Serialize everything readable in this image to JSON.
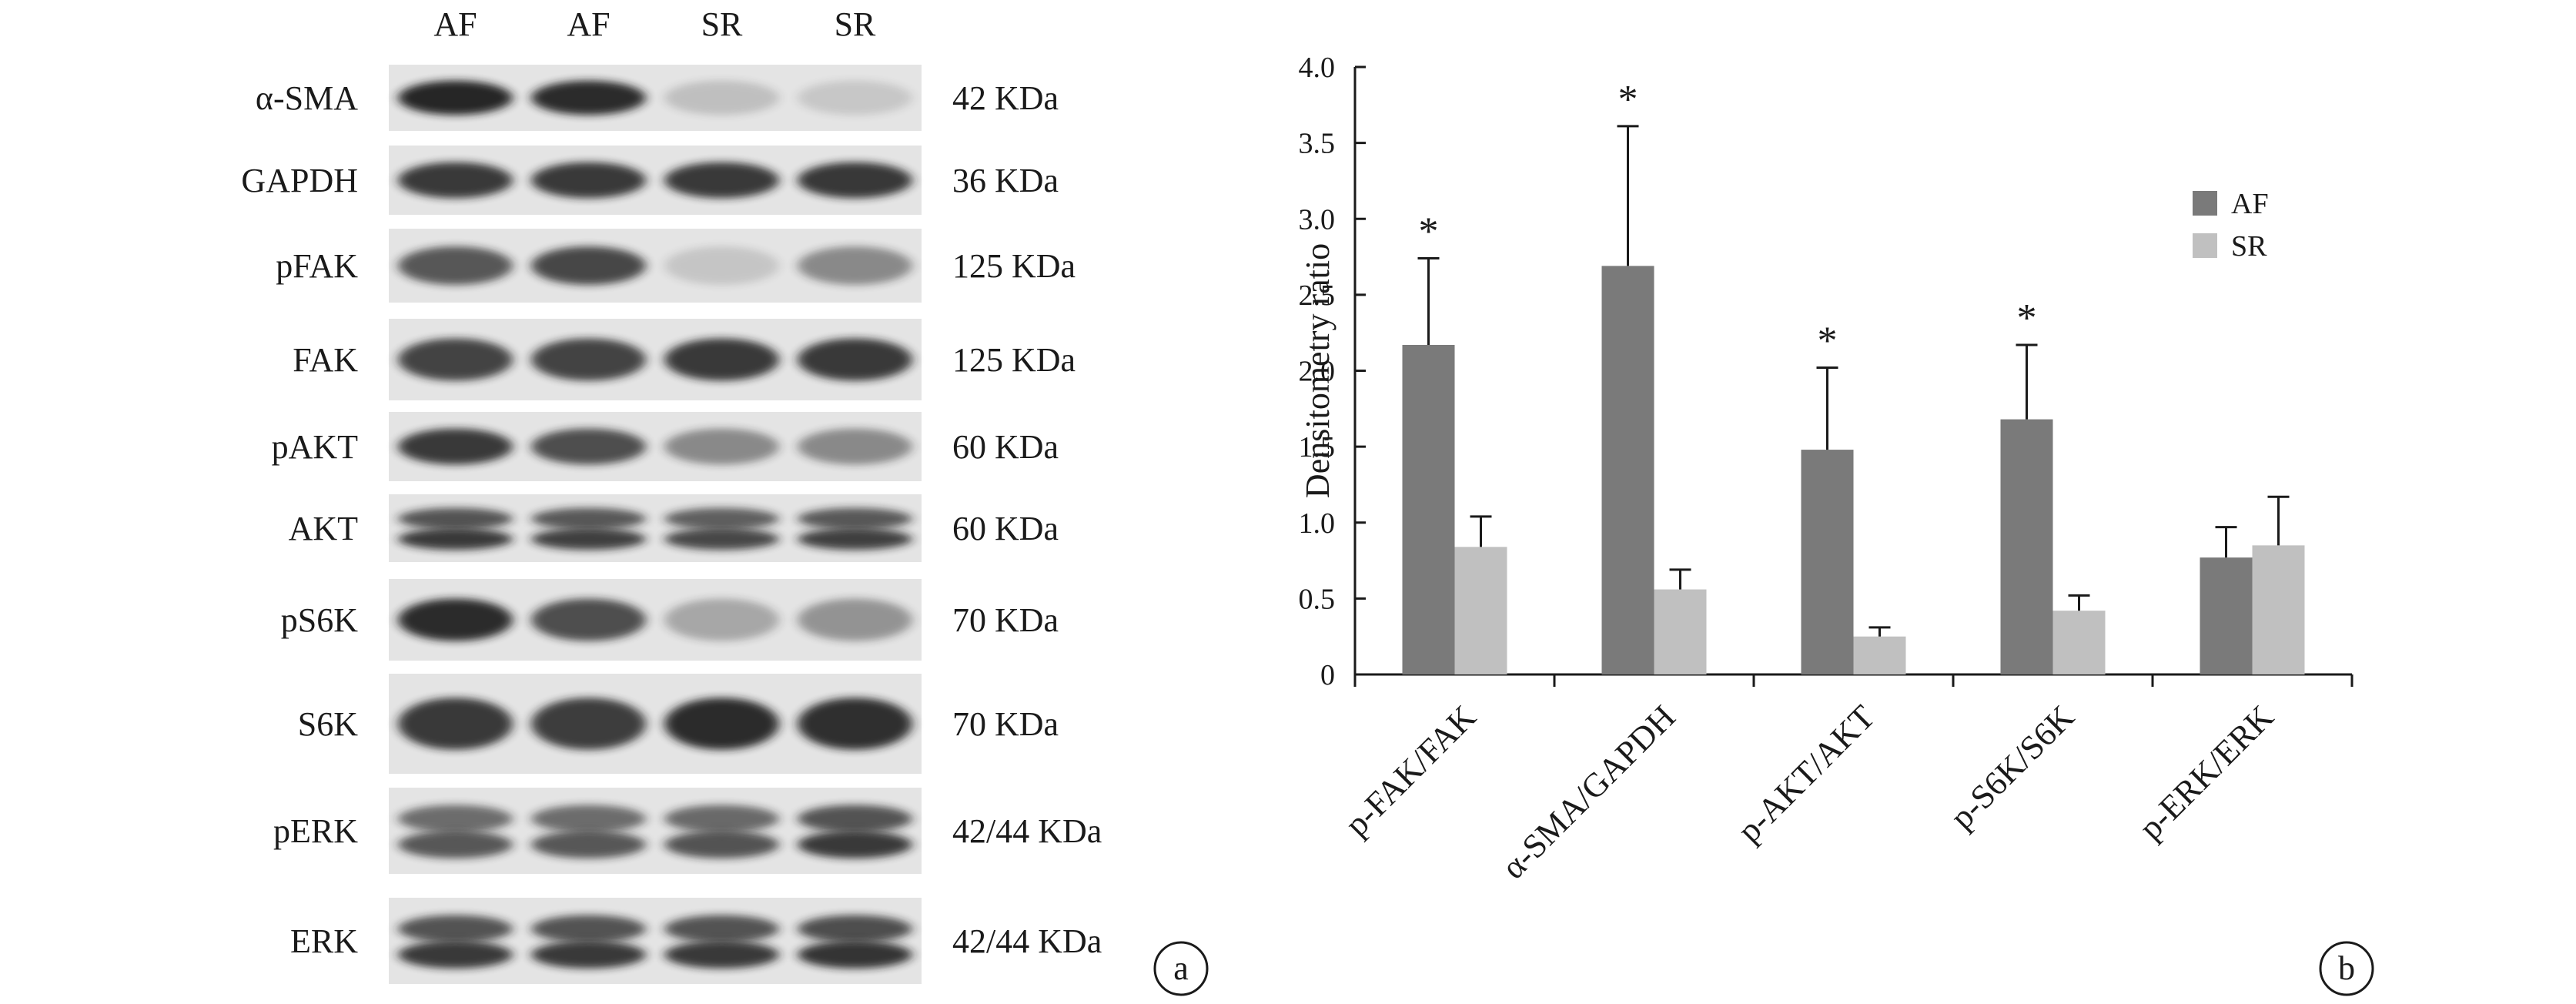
{
  "blot": {
    "lane_labels": [
      "AF",
      "AF",
      "SR",
      "SR"
    ],
    "rows": [
      {
        "protein": "α-SMA",
        "size": "42 KDa",
        "intensity": [
          0.95,
          0.92,
          0.18,
          0.14
        ],
        "double": false
      },
      {
        "protein": "GAPDH",
        "size": "36 KDa",
        "intensity": [
          0.85,
          0.85,
          0.85,
          0.86
        ],
        "double": false
      },
      {
        "protein": "pFAK",
        "size": "125 KDa",
        "intensity": [
          0.7,
          0.78,
          0.15,
          0.45
        ],
        "double": false
      },
      {
        "protein": "FAK",
        "size": "125 KDa",
        "intensity": [
          0.8,
          0.8,
          0.85,
          0.85
        ],
        "double": false
      },
      {
        "protein": "pAKT",
        "size": "60 KDa",
        "intensity": [
          0.85,
          0.75,
          0.45,
          0.45
        ],
        "double": false
      },
      {
        "protein": "AKT",
        "size": "60 KDa",
        "intensity": [
          0.85,
          0.82,
          0.78,
          0.82
        ],
        "double": true
      },
      {
        "protein": "pS6K",
        "size": "70 KDa",
        "intensity": [
          0.92,
          0.75,
          0.3,
          0.4
        ],
        "double": false
      },
      {
        "protein": "S6K",
        "size": "70 KDa",
        "intensity": [
          0.85,
          0.83,
          0.92,
          0.9
        ],
        "double": false
      },
      {
        "protein": "pERK",
        "size": "42/44 KDa",
        "intensity": [
          0.7,
          0.7,
          0.72,
          0.85
        ],
        "double": true
      },
      {
        "protein": "ERK",
        "size": "42/44 KDa",
        "intensity": [
          0.85,
          0.85,
          0.85,
          0.88
        ],
        "double": true
      }
    ],
    "panel_label": "a"
  },
  "chart_data": {
    "type": "bar",
    "categories": [
      "p-FAK/FAK",
      "α-SMA/GAPDH",
      "p-AKT/AKT",
      "p-S6K/S6K",
      "p-ERK/ERK"
    ],
    "series": [
      {
        "name": "AF",
        "color": "#7a7a7a",
        "values": [
          2.17,
          2.69,
          1.48,
          1.68,
          0.77
        ],
        "errors": [
          0.57,
          0.92,
          0.54,
          0.49,
          0.2
        ]
      },
      {
        "name": "SR",
        "color": "#c0c0c0",
        "values": [
          0.84,
          0.56,
          0.25,
          0.42,
          0.85
        ],
        "errors": [
          0.2,
          0.13,
          0.06,
          0.1,
          0.32
        ]
      }
    ],
    "significance": [
      "*",
      "*",
      "*",
      "*",
      ""
    ],
    "ylabel": "Densitometry ratio",
    "ylim": [
      0,
      4.0
    ],
    "yticks": [
      "0",
      "0.5",
      "1.0",
      "1.5",
      "2.0",
      "2.5",
      "3.0",
      "3.5",
      "4.0"
    ],
    "grid": false,
    "legend_position": "top-right",
    "panel_label": "b"
  }
}
